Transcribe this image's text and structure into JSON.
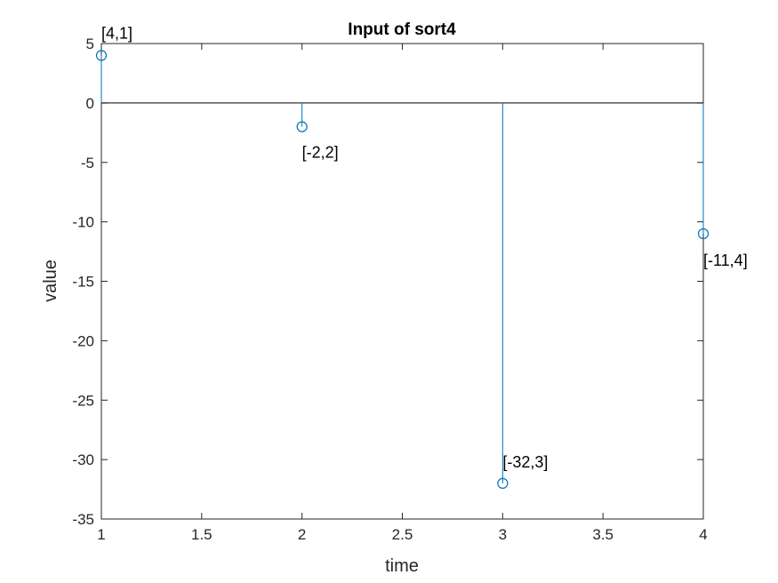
{
  "chart_data": {
    "type": "stem",
    "title": "Input of sort4",
    "xlabel": "time",
    "ylabel": "value",
    "xlim": [
      1,
      4
    ],
    "ylim": [
      -35,
      5
    ],
    "xticks": [
      "1",
      "1.5",
      "2",
      "2.5",
      "3",
      "3.5",
      "4"
    ],
    "yticks": [
      "5",
      "0",
      "-5",
      "-10",
      "-15",
      "-20",
      "-25",
      "-30",
      "-35"
    ],
    "series": [
      {
        "name": "input",
        "x": [
          1,
          2,
          3,
          4
        ],
        "y": [
          4,
          -2,
          -32,
          -11
        ]
      }
    ],
    "annotations": [
      "[4,1]",
      "[-2,2]",
      "[-32,3]",
      "[-11,4]"
    ],
    "grid": false,
    "colors": {
      "stem": "#0072BD",
      "axes": "#262626",
      "baseline": "#000000"
    }
  }
}
